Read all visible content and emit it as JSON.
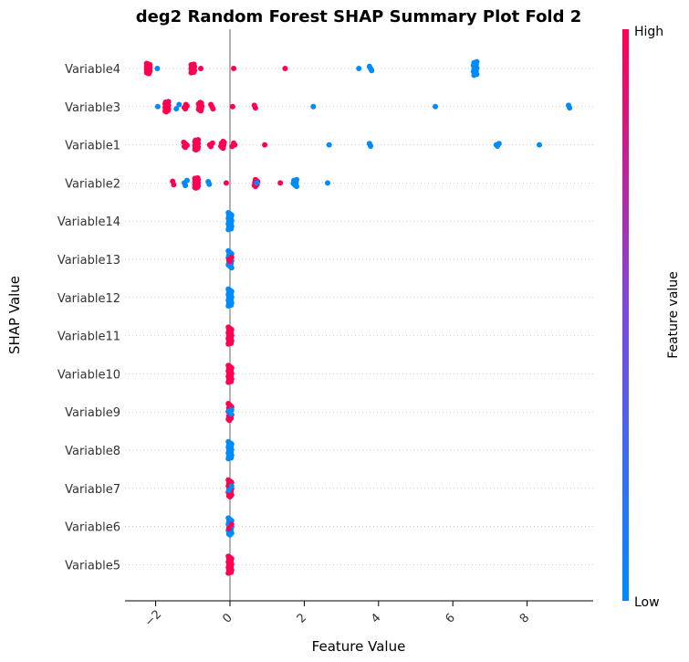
{
  "chart_data": {
    "type": "scatter",
    "title": "deg2 Random Forest SHAP Summary Plot Fold 2",
    "xlabel": "Feature Value",
    "ylabel": "SHAP Value",
    "xlim": [
      -2.8,
      9.7
    ],
    "x_ticks": [
      -2,
      0,
      2,
      4,
      6,
      8
    ],
    "x_tick_labels": [
      "−2",
      "0",
      "2",
      "4",
      "6",
      "8"
    ],
    "colorbar": {
      "label": "Feature value",
      "high": "High",
      "low": "Low",
      "high_color": "#ff0052",
      "low_color": "#008bfb"
    },
    "zero_line_color": "#999999",
    "features": [
      {
        "name": "Variable4",
        "groups": [
          {
            "x": -2.2,
            "n": 24,
            "s": 0.12,
            "c": "high"
          },
          {
            "x": -2.0,
            "n": 1,
            "s": 0,
            "c": "low"
          },
          {
            "x": -1.0,
            "n": 16,
            "s": 0.1,
            "c": "high"
          },
          {
            "x": -0.8,
            "n": 1,
            "s": 0,
            "c": "high"
          },
          {
            "x": 0.1,
            "n": 1,
            "s": 0,
            "c": "high"
          },
          {
            "x": 1.5,
            "n": 1,
            "s": 0,
            "c": "high"
          },
          {
            "x": 3.5,
            "n": 1,
            "s": 0,
            "c": "low"
          },
          {
            "x": 3.8,
            "n": 3,
            "s": 0.05,
            "c": "low"
          },
          {
            "x": 6.6,
            "n": 16,
            "s": 0.16,
            "c": "low"
          }
        ]
      },
      {
        "name": "Variable3",
        "groups": [
          {
            "x": -1.9,
            "n": 1,
            "s": 0,
            "c": "low"
          },
          {
            "x": -1.7,
            "n": 20,
            "s": 0.12,
            "c": "high"
          },
          {
            "x": -1.4,
            "n": 2,
            "s": 0.05,
            "c": "low"
          },
          {
            "x": -1.2,
            "n": 4,
            "s": 0.05,
            "c": "high"
          },
          {
            "x": -0.8,
            "n": 12,
            "s": 0.1,
            "c": "high"
          },
          {
            "x": -0.5,
            "n": 3,
            "s": 0.05,
            "c": "high"
          },
          {
            "x": 0.1,
            "n": 1,
            "s": 0,
            "c": "high"
          },
          {
            "x": 0.7,
            "n": 2,
            "s": 0.03,
            "c": "high"
          },
          {
            "x": 2.2,
            "n": 1,
            "s": 0,
            "c": "low"
          },
          {
            "x": 5.5,
            "n": 1,
            "s": 0,
            "c": "low"
          },
          {
            "x": 9.1,
            "n": 2,
            "s": 0.03,
            "c": "low"
          }
        ]
      },
      {
        "name": "Variable1",
        "groups": [
          {
            "x": -1.2,
            "n": 6,
            "s": 0.06,
            "c": "high"
          },
          {
            "x": -0.9,
            "n": 20,
            "s": 0.12,
            "c": "high"
          },
          {
            "x": -0.5,
            "n": 3,
            "s": 0.04,
            "c": "high"
          },
          {
            "x": -0.2,
            "n": 8,
            "s": 0.08,
            "c": "high"
          },
          {
            "x": 0.1,
            "n": 3,
            "s": 0.04,
            "c": "high"
          },
          {
            "x": 0.95,
            "n": 1,
            "s": 0,
            "c": "high"
          },
          {
            "x": 2.7,
            "n": 1,
            "s": 0,
            "c": "low"
          },
          {
            "x": 3.8,
            "n": 2,
            "s": 0.03,
            "c": "low"
          },
          {
            "x": 7.2,
            "n": 3,
            "s": 0.03,
            "c": "low"
          },
          {
            "x": 8.3,
            "n": 1,
            "s": 0,
            "c": "low"
          }
        ]
      },
      {
        "name": "Variable2",
        "groups": [
          {
            "x": -1.5,
            "n": 2,
            "s": 0.04,
            "c": "high"
          },
          {
            "x": -1.2,
            "n": 3,
            "s": 0.06,
            "c": "low"
          },
          {
            "x": -0.9,
            "n": 24,
            "s": 0.12,
            "c": "high"
          },
          {
            "x": -0.6,
            "n": 2,
            "s": 0.03,
            "c": "low"
          },
          {
            "x": -0.1,
            "n": 1,
            "s": 0,
            "c": "high"
          },
          {
            "x": 0.7,
            "n": 8,
            "s": 0.08,
            "c": "high"
          },
          {
            "x": 0.75,
            "n": 1,
            "s": 0,
            "c": "low"
          },
          {
            "x": 1.4,
            "n": 1,
            "s": 0,
            "c": "high"
          },
          {
            "x": 1.75,
            "n": 8,
            "s": 0.08,
            "c": "low"
          },
          {
            "x": 2.6,
            "n": 1,
            "s": 0,
            "c": "low"
          }
        ]
      },
      {
        "name": "Variable14",
        "groups": [
          {
            "x": 0,
            "n": 22,
            "s": 0.2,
            "c": "low"
          }
        ]
      },
      {
        "name": "Variable13",
        "groups": [
          {
            "x": 0,
            "n": 18,
            "s": 0.2,
            "c": "low"
          },
          {
            "x": 0,
            "n": 3,
            "s": 0.05,
            "c": "high"
          }
        ]
      },
      {
        "name": "Variable12",
        "groups": [
          {
            "x": 0,
            "n": 22,
            "s": 0.2,
            "c": "low"
          }
        ]
      },
      {
        "name": "Variable11",
        "groups": [
          {
            "x": 0,
            "n": 22,
            "s": 0.2,
            "c": "high"
          }
        ]
      },
      {
        "name": "Variable10",
        "groups": [
          {
            "x": 0,
            "n": 22,
            "s": 0.2,
            "c": "high"
          }
        ]
      },
      {
        "name": "Variable9",
        "groups": [
          {
            "x": 0,
            "n": 16,
            "s": 0.2,
            "c": "high"
          },
          {
            "x": 0,
            "n": 4,
            "s": 0.05,
            "c": "low"
          }
        ]
      },
      {
        "name": "Variable8",
        "groups": [
          {
            "x": 0,
            "n": 22,
            "s": 0.2,
            "c": "low"
          }
        ]
      },
      {
        "name": "Variable7",
        "groups": [
          {
            "x": 0,
            "n": 20,
            "s": 0.2,
            "c": "high"
          },
          {
            "x": 0,
            "n": 2,
            "s": 0.05,
            "c": "low"
          }
        ]
      },
      {
        "name": "Variable6",
        "groups": [
          {
            "x": 0,
            "n": 20,
            "s": 0.2,
            "c": "low"
          },
          {
            "x": 0,
            "n": 2,
            "s": 0.05,
            "c": "high"
          }
        ]
      },
      {
        "name": "Variable5",
        "groups": [
          {
            "x": 0,
            "n": 22,
            "s": 0.2,
            "c": "high"
          }
        ]
      }
    ]
  }
}
